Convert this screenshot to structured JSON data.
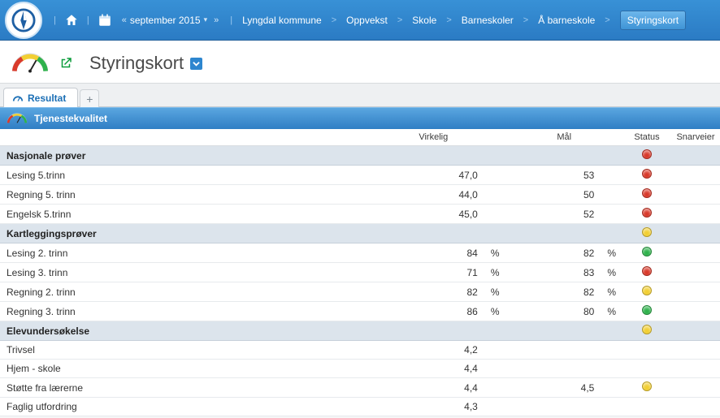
{
  "colors": {
    "status_red": "#d93a2b",
    "status_yellow": "#f2cf33",
    "status_green": "#2fb24c"
  },
  "topbar": {
    "period_label": "september 2015",
    "breadcrumb": [
      "Lyngdal kommune",
      "Oppvekst",
      "Skole",
      "Barneskoler",
      "Å barneskole"
    ],
    "end_button": "Styringskort"
  },
  "page": {
    "title": "Styringskort"
  },
  "tabs": {
    "active": "Resultat"
  },
  "section": {
    "title": "Tjenestekvalitet",
    "columns": {
      "virkelig": "Virkelig",
      "mal": "Mål",
      "status": "Status",
      "snarveier": "Snarveier"
    }
  },
  "groups": [
    {
      "label": "Nasjonale prøver",
      "status": "red",
      "rows": [
        {
          "label": "Lesing 5.trinn",
          "virkelig": "47,0",
          "mal": "53",
          "status": "red"
        },
        {
          "label": "Regning 5. trinn",
          "virkelig": "44,0",
          "mal": "50",
          "status": "red"
        },
        {
          "label": "Engelsk 5.trinn",
          "virkelig": "45,0",
          "mal": "52",
          "status": "red"
        }
      ]
    },
    {
      "label": "Kartleggingsprøver",
      "status": "yellow",
      "rows": [
        {
          "label": "Lesing 2. trinn",
          "virkelig": "84",
          "v_unit": "%",
          "mal": "82",
          "m_unit": "%",
          "status": "green"
        },
        {
          "label": "Lesing 3. trinn",
          "virkelig": "71",
          "v_unit": "%",
          "mal": "83",
          "m_unit": "%",
          "status": "red"
        },
        {
          "label": "Regning 2. trinn",
          "virkelig": "82",
          "v_unit": "%",
          "mal": "82",
          "m_unit": "%",
          "status": "yellow"
        },
        {
          "label": "Regning 3. trinn",
          "virkelig": "86",
          "v_unit": "%",
          "mal": "80",
          "m_unit": "%",
          "status": "green"
        }
      ]
    },
    {
      "label": "Elevundersøkelse",
      "status": "yellow",
      "rows": [
        {
          "label": "Trivsel",
          "virkelig": "4,2"
        },
        {
          "label": "Hjem - skole",
          "virkelig": "4,4"
        },
        {
          "label": "Støtte fra lærerne",
          "virkelig": "4,4",
          "mal": "4,5",
          "status": "yellow"
        },
        {
          "label": "Faglig utfordring",
          "virkelig": "4,3"
        }
      ]
    }
  ]
}
